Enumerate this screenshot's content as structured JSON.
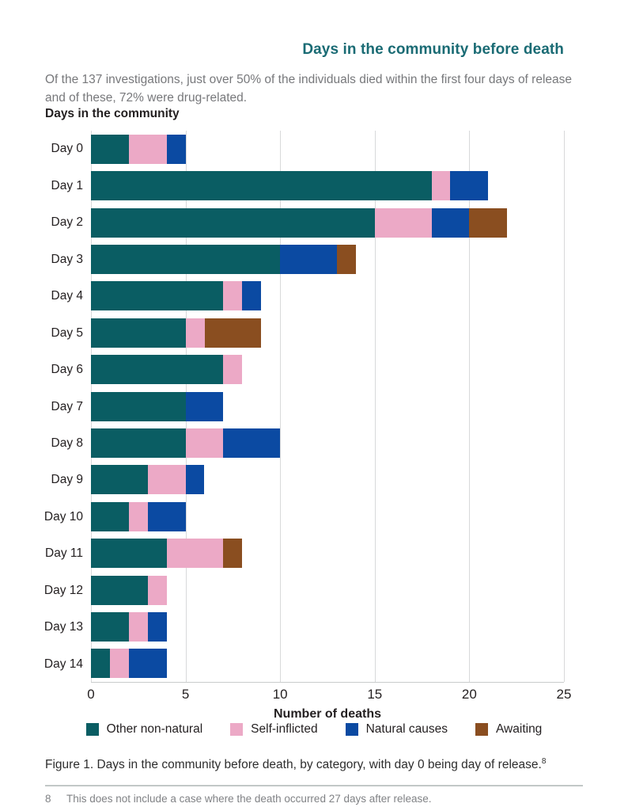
{
  "header": {
    "title": "Days in the community before death",
    "intro": "Of the 137 investigations, just over 50% of the individuals died within the first four days of release and of these, 72% were drug-related."
  },
  "caption": {
    "text": "Figure 1. Days in the community before death, by category, with day 0 being day of release.",
    "superscript": "8"
  },
  "footnote": {
    "number": "8",
    "text": "This does not include a case where the death occurred 27 days after release."
  },
  "colors": {
    "teal": "#0a5d63",
    "pink": "#eca9c6",
    "blue": "#0b4aa2",
    "brown": "#8a4e20",
    "title_accent": "#1a6b74",
    "gridline": "#d8d9da",
    "text_dark": "#231f20",
    "text_gray": "#77787b",
    "footnote_gray": "#808285"
  },
  "chart_data": {
    "type": "bar",
    "orientation": "horizontal",
    "stacked": true,
    "title": "Days in the community",
    "xlabel": "Number of deaths",
    "ylabel": "",
    "xmax": 25,
    "x_ticks": [
      0,
      5,
      10,
      15,
      20,
      25
    ],
    "grid": true,
    "legend_position": "bottom",
    "categories": [
      "Day 0",
      "Day 1",
      "Day 2",
      "Day 3",
      "Day 4",
      "Day 5",
      "Day 6",
      "Day 7",
      "Day 8",
      "Day 9",
      "Day 10",
      "Day 11",
      "Day 12",
      "Day 13",
      "Day 14"
    ],
    "series": [
      {
        "key": "other-non-natural",
        "name": "Other non-natural",
        "color": "#0a5d63",
        "values": [
          2,
          18,
          15,
          10,
          7,
          5,
          7,
          5,
          5,
          3,
          2,
          4,
          3,
          2,
          1
        ]
      },
      {
        "key": "self-inflicted",
        "name": "Self-inflicted",
        "color": "#eca9c6",
        "values": [
          2,
          1,
          3,
          0,
          1,
          1,
          1,
          0,
          2,
          2,
          1,
          3,
          1,
          1,
          1
        ]
      },
      {
        "key": "natural-causes",
        "name": "Natural causes",
        "color": "#0b4aa2",
        "values": [
          1,
          2,
          2,
          3,
          1,
          0,
          0,
          2,
          3,
          1,
          2,
          0,
          0,
          1,
          2
        ]
      },
      {
        "key": "awaiting",
        "name": "Awaiting",
        "color": "#8a4e20",
        "values": [
          0,
          0,
          2,
          1,
          0,
          3,
          0,
          0,
          0,
          0,
          0,
          1,
          0,
          0,
          0
        ]
      }
    ],
    "totals": [
      5,
      21,
      22,
      14,
      9,
      9,
      8,
      7,
      10,
      6,
      5,
      8,
      4,
      4,
      4
    ]
  }
}
